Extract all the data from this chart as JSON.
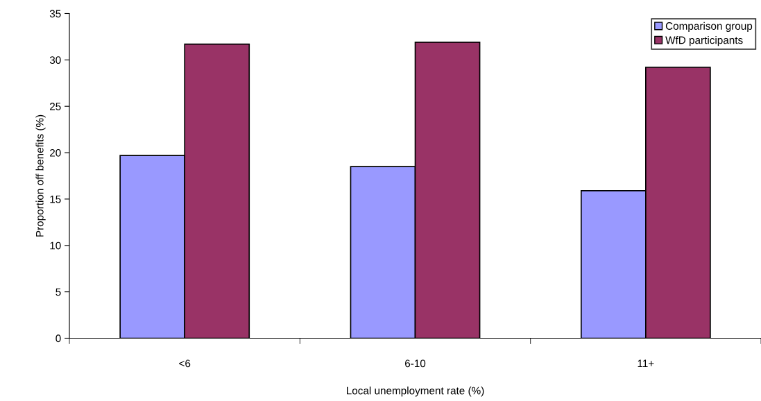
{
  "chart_data": {
    "type": "bar",
    "xlabel": "Local unemployment rate (%)",
    "ylabel": "Proportion off benefits (%)",
    "categories": [
      "<6",
      "6-10",
      "11+"
    ],
    "series": [
      {
        "name": "Comparison group",
        "color": "#9999ff",
        "values": [
          19.7,
          18.5,
          15.9
        ]
      },
      {
        "name": "WfD participants",
        "color": "#993366",
        "values": [
          31.7,
          31.9,
          29.2
        ]
      }
    ],
    "ylim": [
      0,
      35
    ],
    "yticks": [
      0,
      5,
      10,
      15,
      20,
      25,
      30,
      35
    ],
    "grid": false,
    "legend": "top right"
  }
}
